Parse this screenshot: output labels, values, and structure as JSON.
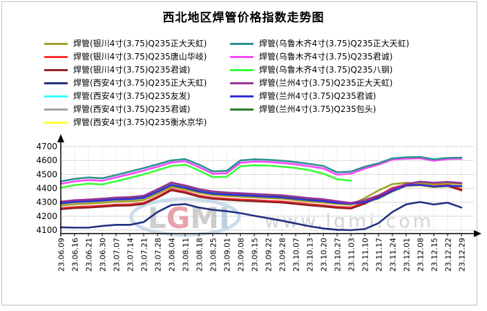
{
  "title": "西北地区焊管价格指数走势图",
  "watermark": {
    "logo_letters": [
      "L",
      "G",
      "M",
      "I"
    ],
    "logo_colors": [
      "#c6c6c6",
      "#e8919e",
      "#c6c6c6",
      "#b3c7de"
    ],
    "oval_color": "#c4d7e9",
    "url_text": "www.lgmi.com",
    "url_color": "#d4d4d4"
  },
  "axis": {
    "color": "#000000",
    "grid_h_color": "#d5d5d5",
    "grid_v_color": "#ececec"
  },
  "chart_data": {
    "type": "line",
    "title": "西北地区焊管价格指数走势图",
    "xlabel": "",
    "ylabel": "",
    "ylim": [
      4100,
      4700
    ],
    "ytick_step": 100,
    "yticks": [
      4100,
      4200,
      4300,
      4400,
      4500,
      4600,
      4700
    ],
    "grid": true,
    "legend_position": "top",
    "x_labels": [
      "23.06.09",
      "23.06.16",
      "23.06.21",
      "23.06.30",
      "23.07.07",
      "23.07.14",
      "23.07.21",
      "23.07.28",
      "23.08.04",
      "23.08.11",
      "23.08.18",
      "23.08.25",
      "23.09.01",
      "23.09.08",
      "23.09.15",
      "23.09.22",
      "23.09.28",
      "23.10.07",
      "23.10.13",
      "23.10.20",
      "23.10.27",
      "23.11.03",
      "23.11.10",
      "23.11.17",
      "23.11.24",
      "23.12.01",
      "23.12.08",
      "23.12.15",
      "23.12.22",
      "23.12.29"
    ],
    "series": [
      {
        "name": "焊管(银川4寸(3.75)Q235正大天虹)",
        "color": "#a0a028",
        "column": "left",
        "values": [
          4276,
          4286,
          4290,
          4296,
          4304,
          4306,
          4316,
          4360,
          4410,
          4392,
          4368,
          4352,
          4345,
          4340,
          4335,
          4330,
          4325,
          4315,
          4305,
          4298,
          4288,
          4282,
          4330,
          4385,
          4430,
          4440,
          4435,
          4428,
          4435,
          4430
        ]
      },
      {
        "name": "焊管(银川4寸(3.75)Q235唐山华岐)",
        "color": "#fb2d2d",
        "column": "left",
        "values": [
          4258,
          4266,
          4270,
          4276,
          4283,
          4285,
          4296,
          4341,
          4394,
          4376,
          4348,
          4333,
          4326,
          4320,
          4316,
          4310,
          4306,
          4296,
          4286,
          4278,
          4268,
          4263,
          4298,
          4348,
          4403,
          4428,
          4433,
          4420,
          4426,
          4393
        ]
      },
      {
        "name": "焊管(银川4寸(3.75)Q235君诚)",
        "color": "#8e2222",
        "column": "left",
        "values": [
          4250,
          4258,
          4262,
          4268,
          4275,
          4277,
          4288,
          4333,
          4386,
          4368,
          4340,
          4325,
          4318,
          4312,
          4308,
          4302,
          4298,
          4288,
          4278,
          4270,
          4260,
          4255,
          4290,
          4340,
          4395,
          4420,
          4425,
          4412,
          4418,
          4385
        ]
      },
      {
        "name": "焊管(西安4寸(3.75)Q235正大天虹)",
        "color": "#20307f",
        "column": "left",
        "values": [
          4120,
          4118,
          4118,
          4130,
          4138,
          4138,
          4158,
          4230,
          4280,
          4287,
          4262,
          4246,
          4236,
          4222,
          4203,
          4186,
          4168,
          4148,
          4128,
          4112,
          4103,
          4100,
          4108,
          4150,
          4230,
          4285,
          4302,
          4284,
          4297,
          4262
        ]
      },
      {
        "name": "焊管(西安4寸(3.75)Q235友发)",
        "color": "#35ffff",
        "column": "left",
        "values": [
          4292,
          4302,
          4306,
          4312,
          4320,
          4322,
          4332,
          4375,
          4424,
          4404,
          4378,
          4362,
          4355,
          4350,
          4345,
          4340,
          4335,
          4325,
          4315,
          4308,
          4295,
          4290,
          4300,
          4330,
          4380,
          4420,
          4425,
          4412,
          4418,
          4415
        ]
      },
      {
        "name": "焊管(西安4寸(3.75)Q235君诚)",
        "color": "#a0a0a0",
        "column": "left",
        "values": [
          4290,
          4300,
          4304,
          4310,
          4318,
          4320,
          4330,
          4373,
          4422,
          4402,
          4376,
          4360,
          4353,
          4348,
          4343,
          4338,
          4333,
          4323,
          4313,
          4306,
          4293,
          4288,
          4298,
          4328,
          4378,
          4418,
          4423,
          4410,
          4416,
          4413
        ]
      },
      {
        "name": "焊管(西安4寸(3.75)Q235衡水京华)",
        "color": "#ffff35",
        "column": "left",
        "values": [
          4287,
          4297,
          4301,
          4307,
          4315,
          4317,
          4327,
          4370,
          4419,
          4399,
          4373,
          4357,
          4350,
          4345,
          4340,
          4335,
          4330,
          4320,
          4310,
          4303,
          4290,
          4285,
          4295,
          4325,
          4375,
          4415,
          4420,
          4407,
          4413,
          4410
        ]
      },
      {
        "name": "焊管(乌鲁木齐4寸(3.75)Q235正大天虹)",
        "color": "#2d8f8f",
        "column": "right",
        "values": [
          4450,
          4468,
          4478,
          4472,
          4495,
          4520,
          4545,
          4572,
          4600,
          4610,
          4570,
          4522,
          4525,
          4600,
          4608,
          4605,
          4598,
          4588,
          4575,
          4560,
          4515,
          4520,
          4555,
          4580,
          4615,
          4622,
          4625,
          4608,
          4618,
          4620
        ]
      },
      {
        "name": "焊管(乌鲁木齐4寸(3.75)Q235君诚)",
        "color": "#fb46fb",
        "column": "right",
        "values": [
          4432,
          4450,
          4460,
          4455,
          4478,
          4502,
          4528,
          4555,
          4585,
          4595,
          4552,
          4505,
          4508,
          4583,
          4592,
          4590,
          4582,
          4572,
          4558,
          4543,
          4498,
          4505,
          4542,
          4570,
          4606,
          4613,
          4616,
          4598,
          4610,
          4612
        ]
      },
      {
        "name": "焊管(乌鲁木齐4寸(3.75)Q235八钢)",
        "color": "#35ff35",
        "column": "right",
        "values": [
          4405,
          4423,
          4433,
          4428,
          4450,
          4475,
          4500,
          4530,
          4560,
          4570,
          4528,
          4480,
          4482,
          4558,
          4566,
          4563,
          4556,
          4546,
          4530,
          4505,
          4465,
          4455,
          null,
          null,
          null,
          null,
          null,
          null,
          null,
          null
        ]
      },
      {
        "name": "焊管(兰州4寸(3.75)Q235正大天虹)",
        "color": "#993299",
        "column": "right",
        "values": [
          4305,
          4315,
          4320,
          4326,
          4334,
          4337,
          4347,
          4393,
          4442,
          4421,
          4395,
          4378,
          4370,
          4365,
          4360,
          4355,
          4350,
          4340,
          4330,
          4322,
          4308,
          4295,
          4315,
          4350,
          4395,
          4430,
          4448,
          4440,
          4446,
          4438
        ]
      },
      {
        "name": "焊管(兰州4寸(3.75)Q235君诚)",
        "color": "#3030d8",
        "column": "right",
        "values": [
          4292,
          4302,
          4306,
          4312,
          4320,
          4322,
          4332,
          4375,
          4424,
          4404,
          4378,
          4362,
          4355,
          4350,
          4345,
          4340,
          4335,
          4325,
          4315,
          4308,
          4295,
          4290,
          4300,
          4330,
          4380,
          4420,
          4425,
          4412,
          4418,
          4415
        ]
      },
      {
        "name": "焊管(兰州4寸(3.75)Q235包头)",
        "color": "#267a26",
        "column": "right",
        "values": [
          4302,
          4312,
          4317,
          4323,
          4331,
          4334,
          4344,
          4390,
          4439,
          4418,
          4392,
          4375,
          4367,
          4362,
          4357,
          4352,
          4347,
          4337,
          4327,
          4319,
          4305,
          4292,
          4312,
          4347,
          4392,
          4427,
          4445,
          4437,
          4443,
          4435
        ]
      }
    ],
    "draw_order": [
      6,
      5,
      4,
      12,
      1,
      2,
      0,
      3,
      11,
      10,
      9,
      8,
      7
    ]
  }
}
